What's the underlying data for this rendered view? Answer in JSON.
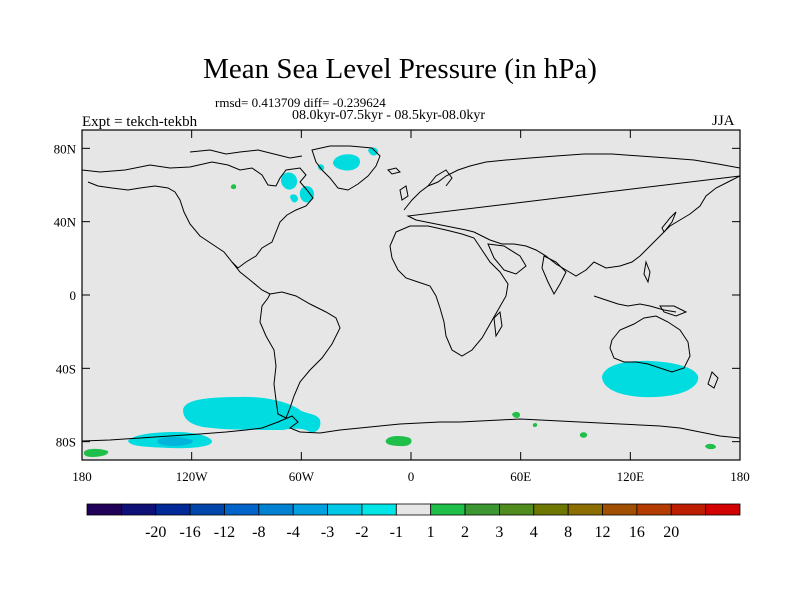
{
  "title": "Mean Sea Level Pressure (in hPa)",
  "stats_line": "rmsd= 0.413709 diff= -0.239624",
  "period_line": "08.0kyr-07.5kyr - 08.5kyr-08.0kyr",
  "left_label": "Expt = tekch-tekbh",
  "right_label": "JJA",
  "map": {
    "ocean_color": "#e6e6e6",
    "coast_color": "#000000",
    "lon_range": [
      -180,
      180
    ],
    "lat_range": [
      -90,
      90
    ],
    "lat_ticks": [
      {
        "lat": 80,
        "label": "80N"
      },
      {
        "lat": 40,
        "label": "40N"
      },
      {
        "lat": 0,
        "label": "0"
      },
      {
        "lat": -40,
        "label": "40S"
      },
      {
        "lat": -80,
        "label": "80S"
      }
    ],
    "lon_ticks": [
      {
        "lon": -180,
        "label": "180"
      },
      {
        "lon": -120,
        "label": "120W"
      },
      {
        "lon": -60,
        "label": "60W"
      },
      {
        "lon": 0,
        "label": "0"
      },
      {
        "lon": 60,
        "label": "60E"
      },
      {
        "lon": 120,
        "label": "120E"
      },
      {
        "lon": 180,
        "label": "180"
      }
    ],
    "anomalies": [
      {
        "name": "south-pacific-low",
        "level": "-1",
        "color": "#00dce0",
        "lon": -90,
        "lat": -62
      },
      {
        "name": "ross-sea-low",
        "level": "-2",
        "color": "#00b4dc",
        "lon": -138,
        "lat": -79
      },
      {
        "name": "australia-south-low",
        "level": "-1",
        "color": "#00dce0",
        "lon": 132,
        "lat": -45
      },
      {
        "name": "greenland-low",
        "level": "-1",
        "color": "#00dce0",
        "lon": -40,
        "lat": 70
      },
      {
        "name": "antarctic-high-east",
        "level": "1",
        "color": "#1fbf4a",
        "lon": -5,
        "lat": -80
      },
      {
        "name": "antarctic-high-west",
        "level": "1",
        "color": "#1fbf4a",
        "lon": -175,
        "lat": -82
      }
    ]
  },
  "colorbar": {
    "colors": [
      "#21005a",
      "#0f0f78",
      "#002896",
      "#0046aa",
      "#0064c8",
      "#0082d2",
      "#00a0e0",
      "#00c8e6",
      "#00e6e6",
      "#e6e6e6",
      "#1fbf4a",
      "#3c9632",
      "#508c1e",
      "#6e7800",
      "#8c6e00",
      "#a05000",
      "#b43c00",
      "#be1e00",
      "#d20000"
    ],
    "labels": [
      "-20",
      "-16",
      "-12",
      "-8",
      "-4",
      "-3",
      "-2",
      "-1",
      "1",
      "2",
      "3",
      "4",
      "8",
      "12",
      "16",
      "20"
    ]
  }
}
